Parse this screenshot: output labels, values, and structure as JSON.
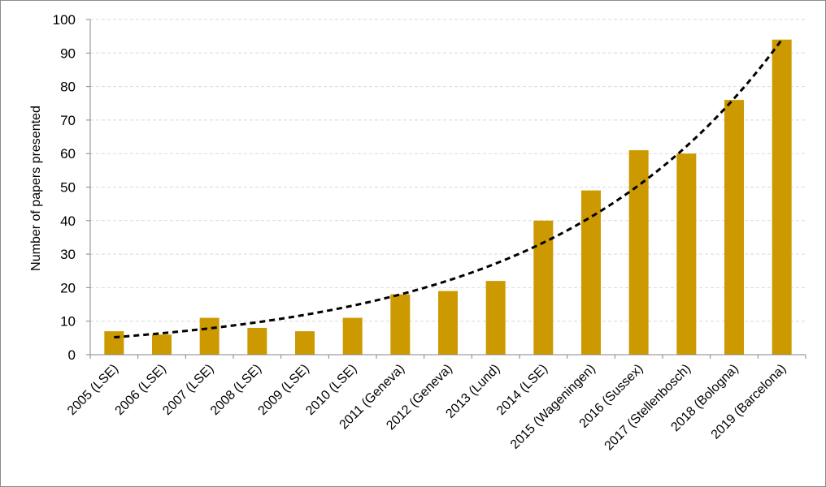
{
  "chart_data": {
    "type": "bar",
    "ylabel": "Number of papers presented",
    "xlabel": "",
    "ylim": [
      0,
      100
    ],
    "yticks": [
      0,
      10,
      20,
      30,
      40,
      50,
      60,
      70,
      80,
      90,
      100
    ],
    "grid": true,
    "categories": [
      "2005 (LSE)",
      "2006 (LSE)",
      "2007 (LSE)",
      "2008 (LSE)",
      "2009 (LSE)",
      "2010 (LSE)",
      "2011 (Geneva)",
      "2012 (Geneva)",
      "2013 (Lund)",
      "2014 (LSE)",
      "2015 (Wageningen)",
      "2016 (Sussex)",
      "2017 (Stellenbosch)",
      "2018 (Bologna)",
      "2019 (Barcelona)"
    ],
    "values": [
      7,
      6,
      11,
      8,
      7,
      11,
      18,
      19,
      22,
      40,
      49,
      61,
      60,
      76,
      94
    ],
    "trendline": {
      "type": "exponential",
      "style": "dashed",
      "color": "#000000",
      "start_value": 5.2,
      "end_value": 94
    },
    "colors": {
      "bar": "#CC9900",
      "grid": "#d9d9d9",
      "axis": "#868686"
    }
  }
}
